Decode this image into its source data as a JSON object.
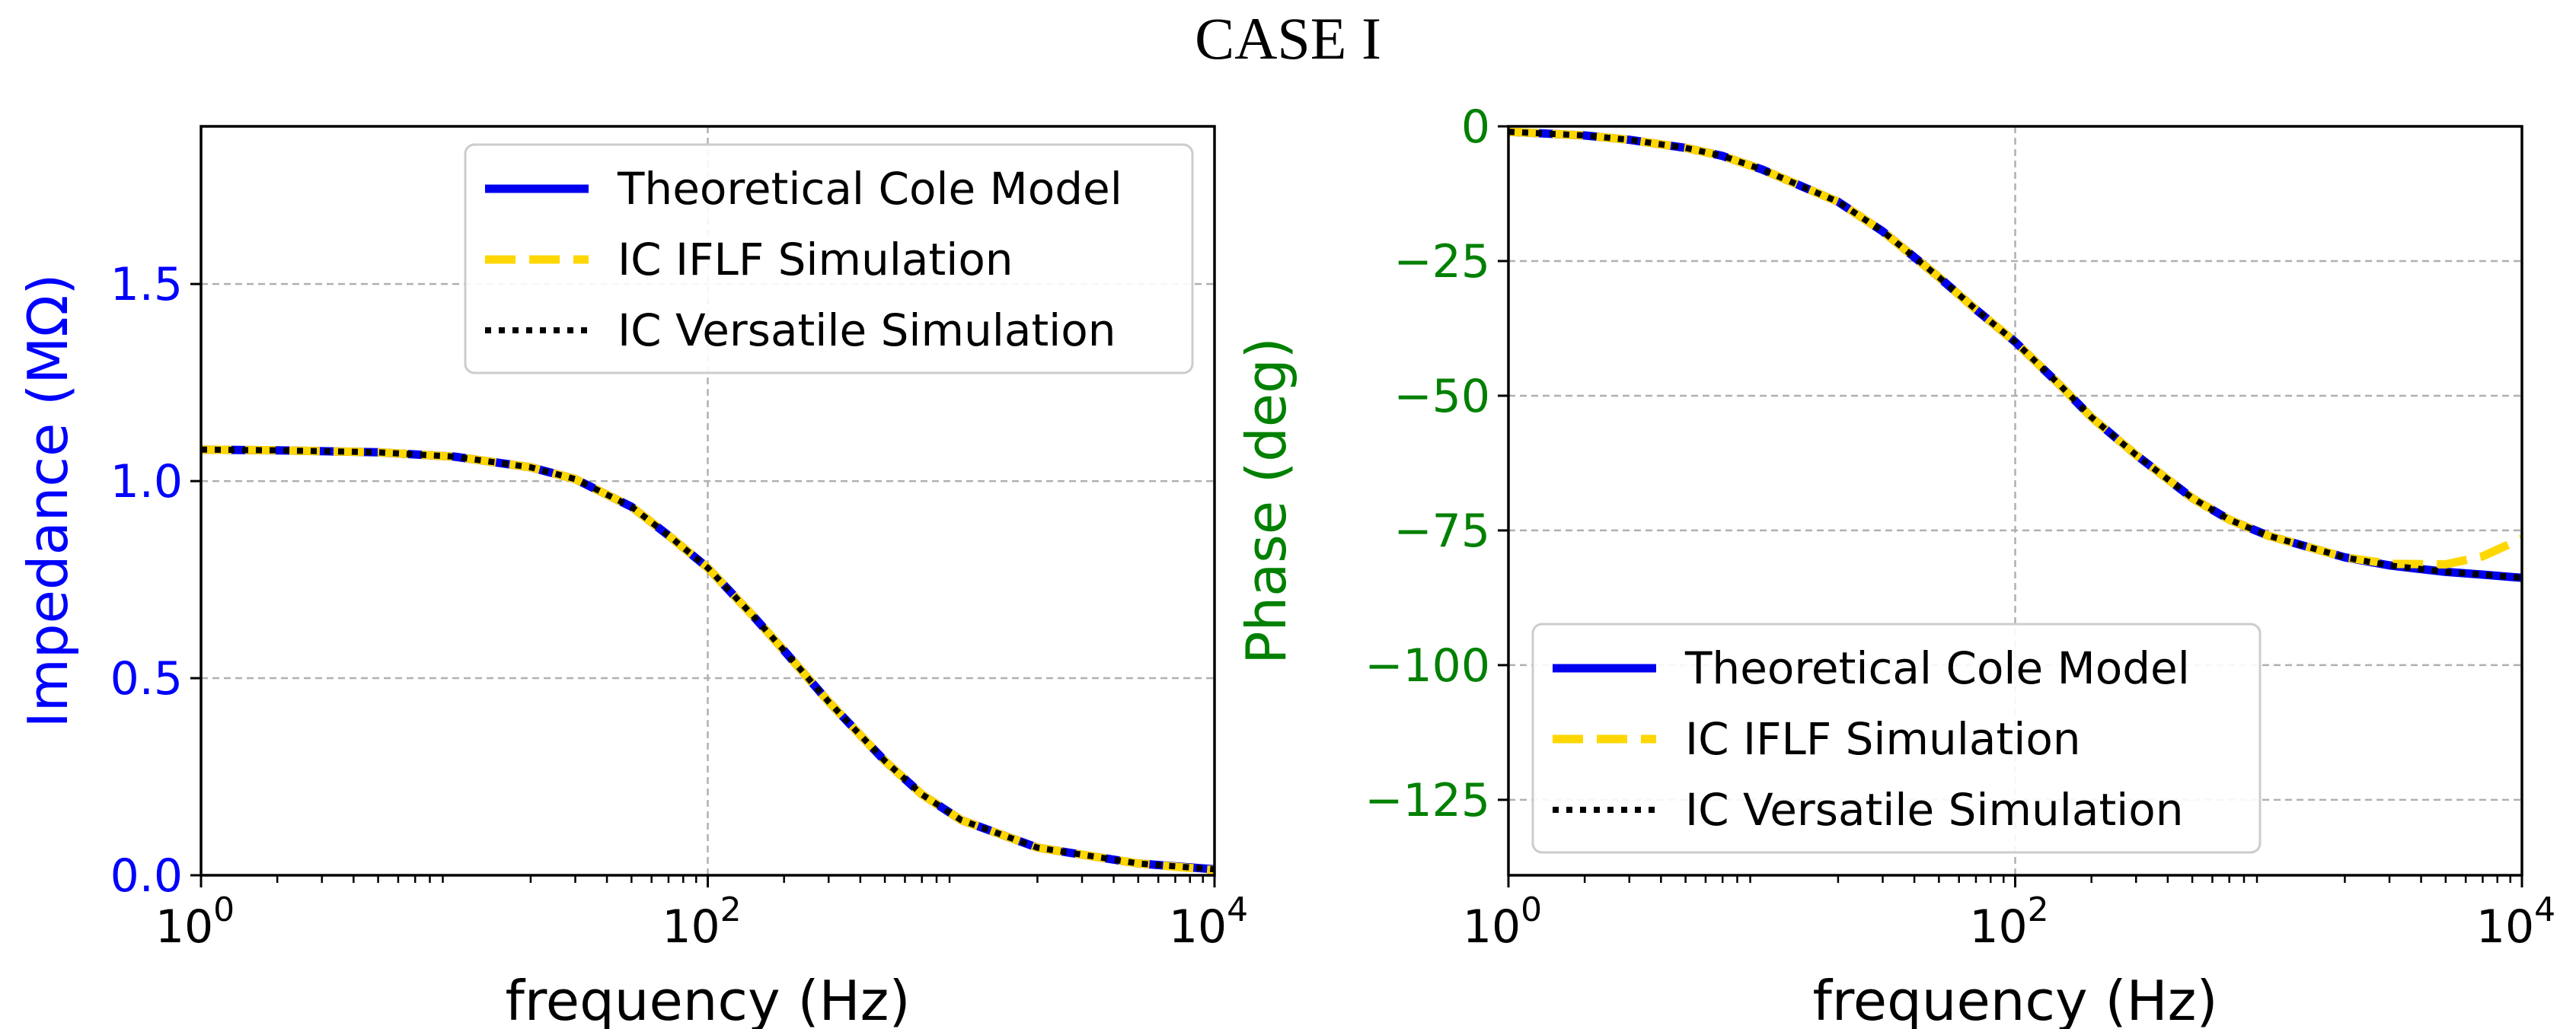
{
  "figure_title": "CASE I",
  "colors": {
    "theory": "#0000ee",
    "iflf": "#ffd700",
    "versatile": "#000000",
    "impedance_axis": "#0000ff",
    "phase_axis": "#008000",
    "grid": "#b0b0b0"
  },
  "chart_data": [
    {
      "type": "line",
      "xscale": "log",
      "title": "",
      "xlabel": "frequency (Hz)",
      "ylabel": "Impedance (MΩ)",
      "xlim": [
        1,
        10000
      ],
      "ylim": [
        0,
        1.9
      ],
      "xticks": [
        {
          "value": 1,
          "base": "10",
          "exp": "0"
        },
        {
          "value": 100,
          "base": "10",
          "exp": "2"
        },
        {
          "value": 10000,
          "base": "10",
          "exp": "4"
        }
      ],
      "yticks": [
        {
          "value": 0.0,
          "label": "0.0"
        },
        {
          "value": 0.5,
          "label": "0.5"
        },
        {
          "value": 1.0,
          "label": "1.0"
        },
        {
          "value": 1.5,
          "label": "1.5"
        }
      ],
      "grid": true,
      "legend_position": "top-right",
      "x": [
        1,
        2,
        5,
        10,
        20,
        30,
        50,
        70,
        100,
        150,
        200,
        300,
        500,
        700,
        1000,
        2000,
        5000,
        10000
      ],
      "series": [
        {
          "name": "Theoretical Cole Model",
          "style": "solid",
          "values": [
            1.08,
            1.078,
            1.073,
            1.062,
            1.035,
            1.005,
            0.935,
            0.862,
            0.78,
            0.66,
            0.57,
            0.44,
            0.29,
            0.205,
            0.14,
            0.07,
            0.03,
            0.015
          ]
        },
        {
          "name": "IC IFLF Simulation",
          "style": "dashed",
          "values": [
            1.08,
            1.078,
            1.073,
            1.062,
            1.035,
            1.005,
            0.935,
            0.862,
            0.78,
            0.66,
            0.57,
            0.44,
            0.29,
            0.205,
            0.14,
            0.07,
            0.03,
            0.013
          ]
        },
        {
          "name": "IC Versatile Simulation",
          "style": "dotted",
          "values": [
            1.08,
            1.078,
            1.073,
            1.062,
            1.035,
            1.005,
            0.935,
            0.862,
            0.78,
            0.66,
            0.57,
            0.44,
            0.29,
            0.205,
            0.14,
            0.07,
            0.03,
            0.015
          ]
        }
      ]
    },
    {
      "type": "line",
      "xscale": "log",
      "title": "",
      "xlabel": "frequency (Hz)",
      "ylabel": "Phase (deg)",
      "xlim": [
        1,
        10000
      ],
      "ylim": [
        -139,
        0
      ],
      "xticks": [
        {
          "value": 1,
          "base": "10",
          "exp": "0"
        },
        {
          "value": 100,
          "base": "10",
          "exp": "2"
        },
        {
          "value": 10000,
          "base": "10",
          "exp": "4"
        }
      ],
      "yticks": [
        {
          "value": 0,
          "label": "0"
        },
        {
          "value": -25,
          "label": "−25"
        },
        {
          "value": -50,
          "label": "−50"
        },
        {
          "value": -75,
          "label": "−75"
        },
        {
          "value": -100,
          "label": "−100"
        },
        {
          "value": -125,
          "label": "−125"
        }
      ],
      "grid": true,
      "legend_position": "lower-left",
      "x": [
        1,
        2,
        3,
        5,
        7,
        10,
        20,
        30,
        50,
        70,
        100,
        150,
        200,
        300,
        500,
        700,
        1000,
        2000,
        3000,
        5000,
        7000,
        10000
      ],
      "series": [
        {
          "name": "Theoretical Cole Model",
          "style": "solid",
          "values": [
            -1,
            -1.7,
            -2.5,
            -4,
            -5.5,
            -8,
            -14,
            -19.5,
            -28,
            -34,
            -40,
            -48,
            -54,
            -61,
            -69,
            -73,
            -76,
            -80,
            -81.5,
            -82.7,
            -83.2,
            -83.8
          ]
        },
        {
          "name": "IC IFLF Simulation",
          "style": "dashed",
          "values": [
            -1,
            -1.7,
            -2.5,
            -4,
            -5.5,
            -8,
            -14,
            -19.5,
            -28,
            -34,
            -40,
            -48,
            -54,
            -61,
            -69,
            -73,
            -76,
            -80,
            -81.2,
            -81.3,
            -79.8,
            -76.5
          ]
        },
        {
          "name": "IC Versatile Simulation",
          "style": "dotted",
          "values": [
            -1,
            -1.7,
            -2.5,
            -4,
            -5.5,
            -8,
            -14,
            -19.5,
            -28,
            -34,
            -40,
            -48,
            -54,
            -61,
            -69,
            -73,
            -76,
            -80,
            -81.5,
            -82.7,
            -83.2,
            -83.8
          ]
        }
      ]
    }
  ]
}
